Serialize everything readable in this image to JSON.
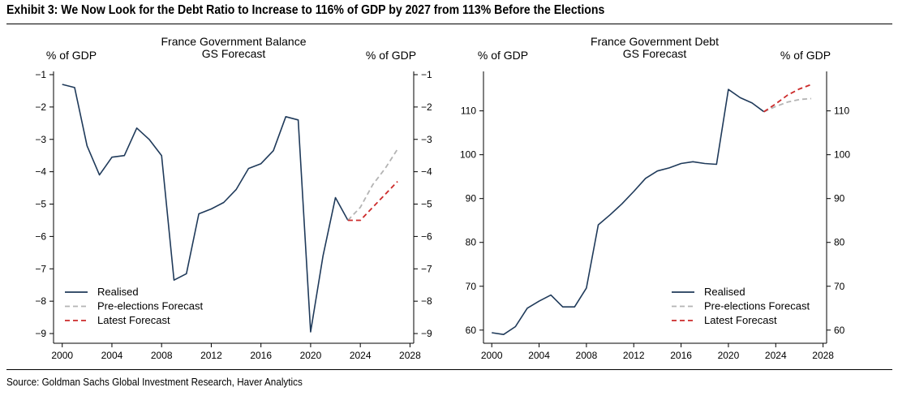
{
  "exhibit_title": "Exhibit 3: We Now Look for the Debt Ratio to Increase to 116% of GDP by 2027 from 113% Before the Elections",
  "source": "Source: Goldman Sachs Global Investment Research, Haver Analytics",
  "colors": {
    "realised": "#1f3a5a",
    "pre_elections": "#b4b4b4",
    "latest": "#cc2a2a",
    "axis": "#000000"
  },
  "chart_data": [
    {
      "type": "line",
      "title": [
        "France Government Balance",
        "GS Forecast"
      ],
      "ylabel_left": "% of GDP",
      "ylabel_right": "% of GDP",
      "xlim": [
        1999.3,
        2028.3
      ],
      "ylim": [
        -9.3,
        -0.9
      ],
      "xticks": [
        2000,
        2004,
        2008,
        2012,
        2016,
        2020,
        2024,
        2028
      ],
      "yticks": [
        -1,
        -2,
        -3,
        -4,
        -5,
        -6,
        -7,
        -8,
        -9
      ],
      "legend_position": "bottom-left",
      "grid": false,
      "series": [
        {
          "name": "Realised",
          "style": "solid",
          "color": "realised",
          "x": [
            2000,
            2001,
            2002,
            2003,
            2004,
            2005,
            2006,
            2007,
            2008,
            2009,
            2010,
            2011,
            2012,
            2013,
            2014,
            2015,
            2016,
            2017,
            2018,
            2019,
            2020,
            2021,
            2022,
            2023
          ],
          "y": [
            -1.3,
            -1.4,
            -3.2,
            -4.1,
            -3.55,
            -3.5,
            -2.65,
            -3.0,
            -3.5,
            -7.35,
            -7.15,
            -5.3,
            -5.15,
            -4.95,
            -4.55,
            -3.9,
            -3.75,
            -3.35,
            -2.3,
            -2.4,
            -8.95,
            -6.6,
            -4.8,
            -5.5
          ]
        },
        {
          "name": "Pre-elections Forecast",
          "style": "dashed",
          "color": "pre_elections",
          "x": [
            2023,
            2024,
            2025,
            2026,
            2027
          ],
          "y": [
            -5.5,
            -5.1,
            -4.4,
            -3.9,
            -3.3
          ]
        },
        {
          "name": "Latest Forecast",
          "style": "dashed",
          "color": "latest",
          "x": [
            2023,
            2024,
            2025,
            2026,
            2027
          ],
          "y": [
            -5.5,
            -5.5,
            -5.1,
            -4.7,
            -4.3
          ]
        }
      ]
    },
    {
      "type": "line",
      "title": [
        "France Government Debt",
        "GS Forecast"
      ],
      "ylabel_left": "% of GDP",
      "ylabel_right": "% of GDP",
      "xlim": [
        1999.3,
        2028.3
      ],
      "ylim": [
        57,
        119
      ],
      "xticks": [
        2000,
        2004,
        2008,
        2012,
        2016,
        2020,
        2024,
        2028
      ],
      "yticks": [
        110,
        100,
        90,
        80,
        70,
        60
      ],
      "legend_position": "bottom-right",
      "grid": false,
      "series": [
        {
          "name": "Realised",
          "style": "solid",
          "color": "realised",
          "x": [
            2000,
            2001,
            2002,
            2003,
            2004,
            2005,
            2006,
            2007,
            2008,
            2009,
            2010,
            2011,
            2012,
            2013,
            2014,
            2015,
            2016,
            2017,
            2018,
            2019,
            2020,
            2021,
            2022,
            2023
          ],
          "y": [
            59.4,
            59.0,
            60.8,
            65.0,
            66.6,
            68.0,
            65.3,
            65.3,
            69.6,
            84.0,
            86.3,
            88.8,
            91.6,
            94.6,
            96.3,
            97.0,
            98.0,
            98.4,
            98.0,
            97.8,
            114.9,
            113.0,
            111.8,
            109.8
          ]
        },
        {
          "name": "Pre-elections Forecast",
          "style": "dashed",
          "color": "pre_elections",
          "x": [
            2023,
            2024,
            2025,
            2026,
            2027
          ],
          "y": [
            109.8,
            111.0,
            112.0,
            112.6,
            112.8
          ]
        },
        {
          "name": "Latest Forecast",
          "style": "dashed",
          "color": "latest",
          "x": [
            2023,
            2024,
            2025,
            2026,
            2027
          ],
          "y": [
            109.8,
            111.6,
            113.6,
            115.0,
            116.0
          ]
        }
      ]
    }
  ]
}
